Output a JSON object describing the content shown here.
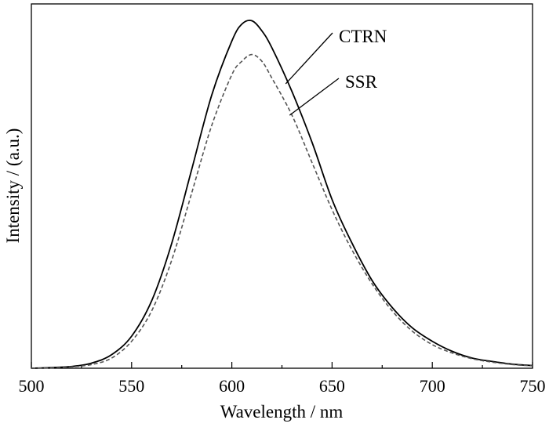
{
  "chart_data": {
    "type": "line",
    "title": "",
    "xlabel": "Wavelength / nm",
    "ylabel": "Intensity / (a.u.)",
    "xlim": [
      500,
      750
    ],
    "ylim": [
      0,
      1.08
    ],
    "x_ticks": [
      500,
      550,
      600,
      650,
      700,
      750
    ],
    "y_ticks_shown": false,
    "grid": false,
    "legend": "none (series labeled by callout annotations)",
    "series": [
      {
        "name": "CTRN",
        "color": "#000000",
        "style": "solid",
        "x": [
          500,
          510,
          520,
          530,
          540,
          550,
          560,
          570,
          580,
          590,
          600,
          605,
          610,
          615,
          620,
          630,
          640,
          650,
          660,
          670,
          680,
          690,
          700,
          710,
          720,
          730,
          740,
          750
        ],
        "y": [
          0.0,
          0.002,
          0.005,
          0.015,
          0.04,
          0.095,
          0.2,
          0.37,
          0.59,
          0.81,
          0.97,
          1.02,
          1.03,
          1.0,
          0.95,
          0.82,
          0.67,
          0.5,
          0.37,
          0.26,
          0.18,
          0.12,
          0.08,
          0.05,
          0.03,
          0.02,
          0.012,
          0.008
        ]
      },
      {
        "name": "SSR",
        "color": "#555555",
        "style": "dashed",
        "x": [
          500,
          510,
          520,
          530,
          540,
          550,
          560,
          570,
          580,
          590,
          600,
          605,
          610,
          615,
          620,
          630,
          640,
          650,
          660,
          670,
          680,
          690,
          700,
          710,
          720,
          730,
          740,
          750
        ],
        "y": [
          0.0,
          0.001,
          0.004,
          0.011,
          0.03,
          0.08,
          0.17,
          0.32,
          0.52,
          0.72,
          0.87,
          0.91,
          0.93,
          0.91,
          0.86,
          0.75,
          0.61,
          0.47,
          0.35,
          0.25,
          0.17,
          0.11,
          0.07,
          0.045,
          0.028,
          0.018,
          0.011,
          0.007
        ]
      }
    ],
    "annotations": [
      {
        "text": "CTRN",
        "series": "CTRN"
      },
      {
        "text": "SSR",
        "series": "SSR"
      }
    ]
  }
}
